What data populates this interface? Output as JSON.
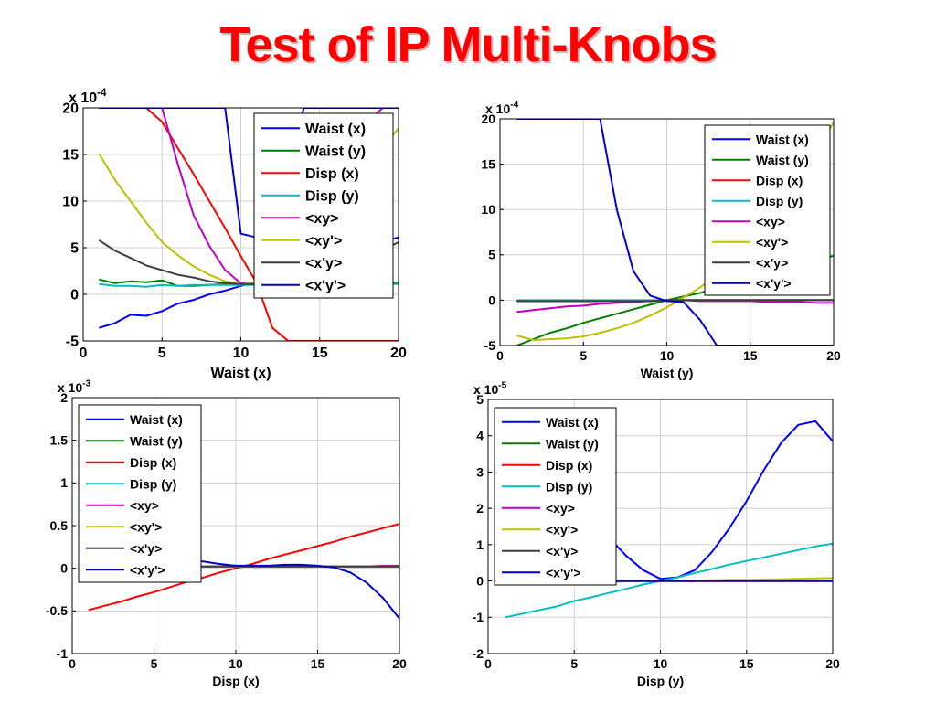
{
  "slide": {
    "title": "Test of IP Multi-Knobs"
  },
  "legend_entries": [
    "Waist (x)",
    "Waist (y)",
    "Disp (x)",
    "Disp (y)",
    "<xy>",
    "<xy'>",
    "<x'y>",
    "<x'y'>"
  ],
  "series_colors": [
    "#0000ff",
    "#007f00",
    "#ff0000",
    "#00bfbf",
    "#bf00bf",
    "#bfbf00",
    "#3f3f3f",
    "#0000cc"
  ],
  "chart_data": [
    {
      "type": "line",
      "xlabel": "Waist (x)",
      "ylabel": "",
      "multiplier": "x 10",
      "exponent": "-4",
      "xlim": [
        0,
        20
      ],
      "ylim": [
        -5,
        20
      ],
      "xticks": [
        0,
        5,
        10,
        15,
        20
      ],
      "yticks": [
        -5,
        0,
        5,
        10,
        15,
        20
      ],
      "grid": true,
      "legend_position": "top-right",
      "x": [
        1,
        2,
        3,
        4,
        5,
        6,
        7,
        8,
        9,
        10,
        11,
        12,
        13,
        14,
        15,
        16,
        17,
        18,
        19,
        20
      ],
      "series": [
        {
          "name": "Waist (x)",
          "values": [
            -3.6,
            -3.1,
            -2.2,
            -2.3,
            -1.8,
            -1.0,
            -0.6,
            0.0,
            0.4,
            0.9,
            1.3,
            1.8,
            2.4,
            3.0,
            3.6,
            4.2,
            4.8,
            5.2,
            5.7,
            6.1
          ]
        },
        {
          "name": "Waist (y)",
          "values": [
            1.6,
            1.2,
            1.4,
            1.3,
            1.5,
            0.9,
            0.9,
            1.0,
            1.1,
            1.1,
            1.0,
            1.0,
            1.0,
            1.1,
            1.1,
            1.1,
            1.2,
            1.2,
            1.3,
            1.2
          ]
        },
        {
          "name": "Disp (x)",
          "values": [
            20,
            20,
            20,
            20,
            18.5,
            15.7,
            12.9,
            10.0,
            7.1,
            4.1,
            1.2,
            -3.6,
            -5,
            -5,
            -5,
            -5,
            -5,
            -5,
            -5,
            -5
          ]
        },
        {
          "name": "Disp (y)",
          "values": [
            1.1,
            0.9,
            0.9,
            0.8,
            1.0,
            0.9,
            1.0,
            1.0,
            1.0,
            1.0,
            1.0,
            1.0,
            1.0,
            1.0,
            1.0,
            1.1,
            1.0,
            1.1,
            1.1,
            1.1
          ]
        },
        {
          "name": "<xy>",
          "values": [
            20,
            20,
            20,
            20,
            20,
            14,
            8.5,
            5.2,
            2.6,
            1.2,
            1.3,
            2.1,
            3.2,
            5.0,
            7.5,
            10.5,
            14.5,
            18.5,
            20,
            20
          ]
        },
        {
          "name": "<xy'>",
          "values": [
            15.1,
            12.3,
            10.0,
            7.7,
            5.6,
            4.2,
            3.0,
            2.1,
            1.4,
            1.1,
            1.3,
            2.0,
            3.0,
            4.5,
            6.3,
            8.5,
            11,
            13.5,
            15.8,
            17.8
          ]
        },
        {
          "name": "<x'y>",
          "values": [
            5.8,
            4.7,
            3.9,
            3.1,
            2.6,
            2.1,
            1.8,
            1.4,
            1.2,
            1.1,
            1.1,
            1.2,
            1.4,
            1.7,
            2.1,
            2.6,
            3.2,
            3.9,
            4.7,
            5.6
          ]
        },
        {
          "name": "<x'y'>",
          "values": [
            20,
            20,
            20,
            20,
            20,
            20,
            20,
            20,
            20,
            6.5,
            6.1,
            9.5,
            14,
            20,
            20,
            20,
            20,
            20,
            20,
            20
          ]
        }
      ]
    },
    {
      "type": "line",
      "xlabel": "Waist (y)",
      "ylabel": "",
      "multiplier": "x 10",
      "exponent": "-4",
      "xlim": [
        0,
        20
      ],
      "ylim": [
        -5,
        20
      ],
      "xticks": [
        0,
        5,
        10,
        15,
        20
      ],
      "yticks": [
        -5,
        0,
        5,
        10,
        15,
        20
      ],
      "grid": true,
      "legend_position": "top-right",
      "x": [
        1,
        2,
        3,
        4,
        5,
        6,
        7,
        8,
        9,
        10,
        11,
        12,
        13,
        14,
        15,
        16,
        17,
        18,
        19,
        20
      ],
      "series": [
        {
          "name": "Waist (x)",
          "values": [
            -0.1,
            -0.1,
            -0.1,
            -0.1,
            -0.1,
            -0.1,
            -0.1,
            -0.1,
            -0.1,
            0.0,
            0.0,
            0.0,
            0.0,
            0.0,
            0.0,
            0.0,
            0.0,
            0.0,
            0.0,
            0.0
          ]
        },
        {
          "name": "Waist (y)",
          "values": [
            -5.0,
            -4.3,
            -3.6,
            -3.1,
            -2.5,
            -2.0,
            -1.5,
            -1.0,
            -0.5,
            0.0,
            0.4,
            0.8,
            1.3,
            1.7,
            2.2,
            2.7,
            3.3,
            3.9,
            4.4,
            4.9
          ]
        },
        {
          "name": "Disp (x)",
          "values": [
            -0.1,
            -0.1,
            -0.1,
            -0.1,
            -0.1,
            -0.1,
            -0.1,
            -0.1,
            -0.1,
            0.0,
            0.0,
            0.0,
            0.0,
            0.0,
            0.0,
            0.0,
            0.0,
            0.0,
            0.0,
            0.0
          ]
        },
        {
          "name": "Disp (y)",
          "values": [
            0.0,
            0.0,
            0.0,
            0.0,
            0.0,
            0.0,
            0.0,
            0.0,
            0.0,
            0.0,
            0.0,
            0.0,
            0.0,
            0.0,
            0.0,
            0.0,
            0.0,
            0.0,
            0.0,
            0.0
          ]
        },
        {
          "name": "<xy>",
          "values": [
            -1.3,
            -1.1,
            -0.9,
            -0.7,
            -0.6,
            -0.4,
            -0.3,
            -0.2,
            -0.1,
            0.0,
            0.0,
            -0.1,
            -0.1,
            -0.1,
            -0.1,
            -0.2,
            -0.2,
            -0.2,
            -0.3,
            -0.3
          ]
        },
        {
          "name": "<xy'>",
          "values": [
            -3.9,
            -4.4,
            -4.3,
            -4.2,
            -4.0,
            -3.6,
            -3.1,
            -2.5,
            -1.7,
            -0.8,
            0.3,
            1.4,
            2.8,
            4.4,
            6.2,
            8.4,
            11.0,
            13.9,
            16.6,
            19.6
          ]
        },
        {
          "name": "<x'y>",
          "values": [
            -0.1,
            -0.1,
            -0.1,
            -0.1,
            -0.1,
            -0.1,
            -0.1,
            -0.1,
            -0.1,
            0.0,
            0.0,
            0.0,
            0.0,
            0.0,
            0.0,
            0.0,
            0.0,
            0.0,
            0.0,
            0.0
          ]
        },
        {
          "name": "<x'y'>",
          "values": [
            20,
            20,
            20,
            20,
            20,
            20,
            10.0,
            3.2,
            0.5,
            -0.1,
            -0.2,
            -2.2,
            -5,
            -5,
            -5,
            -5,
            -5,
            -5,
            -5,
            -5
          ]
        }
      ]
    },
    {
      "type": "line",
      "xlabel": "Disp (x)",
      "ylabel": "",
      "multiplier": "x 10",
      "exponent": "-3",
      "xlim": [
        0,
        20
      ],
      "ylim": [
        -1,
        2
      ],
      "xticks": [
        0,
        5,
        10,
        15,
        20
      ],
      "yticks": [
        -1,
        -0.5,
        0,
        0.5,
        1,
        1.5,
        2
      ],
      "grid": true,
      "legend_position": "top-left",
      "x": [
        1,
        2,
        3,
        4,
        5,
        6,
        7,
        8,
        9,
        10,
        11,
        12,
        13,
        14,
        15,
        16,
        17,
        18,
        19,
        20
      ],
      "series": [
        {
          "name": "Waist (x)",
          "values": [
            0.02,
            0.02,
            0.02,
            0.02,
            0.02,
            0.02,
            0.02,
            0.02,
            0.02,
            0.02,
            0.02,
            0.02,
            0.02,
            0.02,
            0.02,
            0.02,
            0.02,
            0.02,
            0.02,
            0.02
          ]
        },
        {
          "name": "Waist (y)",
          "values": [
            0.02,
            0.02,
            0.02,
            0.02,
            0.02,
            0.02,
            0.02,
            0.02,
            0.02,
            0.02,
            0.02,
            0.02,
            0.02,
            0.02,
            0.02,
            0.02,
            0.02,
            0.02,
            0.02,
            0.02
          ]
        },
        {
          "name": "Disp (x)",
          "values": [
            -0.49,
            -0.44,
            -0.39,
            -0.33,
            -0.28,
            -0.22,
            -0.16,
            -0.11,
            -0.05,
            0.0,
            0.05,
            0.11,
            0.16,
            0.21,
            0.26,
            0.31,
            0.37,
            0.42,
            0.47,
            0.52
          ]
        },
        {
          "name": "Disp (y)",
          "values": [
            0.02,
            0.02,
            0.02,
            0.02,
            0.02,
            0.02,
            0.02,
            0.02,
            0.02,
            0.02,
            0.02,
            0.02,
            0.02,
            0.02,
            0.02,
            0.02,
            0.02,
            0.02,
            0.02,
            0.02
          ]
        },
        {
          "name": "<xy>",
          "values": [
            0.02,
            0.02,
            0.02,
            0.02,
            0.02,
            0.02,
            0.02,
            0.02,
            0.02,
            0.02,
            0.02,
            0.02,
            0.02,
            0.02,
            0.02,
            0.02,
            0.02,
            0.02,
            0.03,
            0.03
          ]
        },
        {
          "name": "<xy'>",
          "values": [
            0.02,
            0.02,
            0.02,
            0.02,
            0.02,
            0.02,
            0.02,
            0.02,
            0.02,
            0.02,
            0.02,
            0.02,
            0.02,
            0.02,
            0.02,
            0.02,
            0.02,
            0.02,
            0.02,
            0.02
          ]
        },
        {
          "name": "<x'y>",
          "values": [
            0.02,
            0.02,
            0.02,
            0.02,
            0.02,
            0.02,
            0.02,
            0.02,
            0.02,
            0.02,
            0.02,
            0.02,
            0.02,
            0.02,
            0.02,
            0.02,
            0.02,
            0.02,
            0.02,
            0.02
          ]
        },
        {
          "name": "<x'y'>",
          "values": [
            0.27,
            0.24,
            0.21,
            0.18,
            0.15,
            0.12,
            0.09,
            0.08,
            0.05,
            0.03,
            0.03,
            0.03,
            0.04,
            0.04,
            0.03,
            0.01,
            -0.05,
            -0.17,
            -0.35,
            -0.59
          ]
        }
      ]
    },
    {
      "type": "line",
      "xlabel": "Disp (y)",
      "ylabel": "",
      "multiplier": "x 10",
      "exponent": "-5",
      "xlim": [
        0,
        20
      ],
      "ylim": [
        -2,
        5
      ],
      "xticks": [
        0,
        5,
        10,
        15,
        20
      ],
      "yticks": [
        -2,
        -1,
        0,
        1,
        2,
        3,
        4,
        5
      ],
      "grid": true,
      "legend_position": "top-left",
      "x": [
        1,
        2,
        3,
        4,
        5,
        6,
        7,
        8,
        9,
        10,
        11,
        12,
        13,
        14,
        15,
        16,
        17,
        18,
        19,
        20
      ],
      "series": [
        {
          "name": "Waist (x)",
          "values": [
            4.0,
            3.6,
            3.2,
            2.7,
            2.2,
            1.7,
            1.2,
            0.7,
            0.3,
            0.06,
            0.1,
            0.3,
            0.8,
            1.45,
            2.2,
            3.05,
            3.8,
            4.3,
            4.4,
            3.85
          ]
        },
        {
          "name": "Waist (y)",
          "values": [
            -0.05,
            -0.04,
            -0.04,
            -0.03,
            -0.03,
            -0.02,
            -0.02,
            -0.01,
            0.0,
            0.0,
            0.0,
            0.0,
            0.01,
            0.01,
            0.01,
            0.01,
            0.01,
            0.01,
            0.01,
            0.01
          ]
        },
        {
          "name": "Disp (x)",
          "values": [
            0.0,
            0.0,
            0.0,
            0.0,
            0.0,
            0.0,
            0.0,
            0.0,
            0.0,
            0.0,
            0.0,
            0.0,
            0.0,
            0.0,
            0.0,
            0.0,
            0.0,
            0.0,
            0.0,
            0.0
          ]
        },
        {
          "name": "Disp (y)",
          "values": [
            -1.0,
            -0.9,
            -0.8,
            -0.7,
            -0.55,
            -0.45,
            -0.33,
            -0.22,
            -0.1,
            0.0,
            0.1,
            0.22,
            0.33,
            0.45,
            0.55,
            0.65,
            0.75,
            0.85,
            0.95,
            1.03
          ]
        },
        {
          "name": "<xy>",
          "values": [
            0.0,
            0.0,
            0.0,
            0.0,
            0.0,
            0.0,
            0.0,
            0.0,
            0.0,
            0.0,
            0.0,
            0.0,
            0.0,
            0.0,
            0.0,
            0.0,
            0.0,
            0.0,
            0.0,
            0.0
          ]
        },
        {
          "name": "<xy'>",
          "values": [
            -0.08,
            -0.07,
            -0.06,
            -0.05,
            -0.04,
            -0.03,
            -0.02,
            -0.01,
            0.0,
            0.0,
            0.0,
            0.01,
            0.02,
            0.03,
            0.03,
            0.04,
            0.05,
            0.06,
            0.07,
            0.08
          ]
        },
        {
          "name": "<x'y>",
          "values": [
            0.0,
            0.0,
            0.0,
            0.0,
            0.0,
            0.0,
            0.0,
            0.0,
            0.0,
            0.0,
            0.0,
            0.0,
            0.0,
            0.0,
            0.0,
            0.0,
            0.0,
            0.0,
            0.0,
            0.0
          ]
        },
        {
          "name": "<x'y'>",
          "values": [
            0.0,
            0.0,
            0.0,
            0.0,
            0.0,
            0.0,
            0.0,
            0.0,
            0.0,
            0.0,
            0.0,
            0.0,
            0.0,
            0.0,
            0.0,
            0.0,
            0.0,
            0.0,
            0.0,
            0.0
          ]
        }
      ]
    }
  ]
}
